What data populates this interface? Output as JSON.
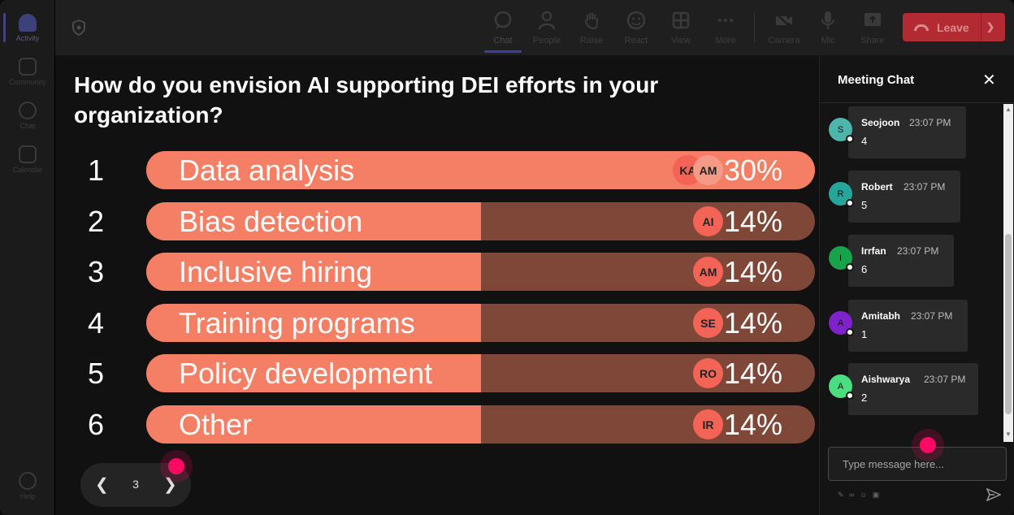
{
  "rail": {
    "items": [
      {
        "label": "Activity",
        "active": true
      },
      {
        "label": "Community",
        "active": false
      },
      {
        "label": "Chat",
        "active": false
      },
      {
        "label": "Calendar",
        "active": false
      }
    ],
    "help": "Help"
  },
  "toolbar": {
    "buttons": [
      {
        "label": "Chat",
        "icon": "chat-icon",
        "active": true
      },
      {
        "label": "People",
        "icon": "people-icon"
      },
      {
        "label": "Raise",
        "icon": "hand-icon"
      },
      {
        "label": "React",
        "icon": "smile-icon"
      },
      {
        "label": "View",
        "icon": "grid-icon"
      },
      {
        "label": "More",
        "icon": "more-icon"
      },
      {
        "label": "Camera",
        "icon": "camera-off-icon"
      },
      {
        "label": "Mic",
        "icon": "mic-icon"
      },
      {
        "label": "Share",
        "icon": "share-icon"
      }
    ],
    "leave_label": "Leave"
  },
  "poll": {
    "question": "How do you envision AI supporting DEI efforts in your organization?",
    "options": [
      {
        "num": "1",
        "label": "Data analysis",
        "pct": "30%",
        "fraction": 0.3,
        "avatars": [
          "KA",
          "AM"
        ]
      },
      {
        "num": "2",
        "label": "Bias detection",
        "pct": "14%",
        "fraction": 0.14,
        "avatars": [
          "AI"
        ]
      },
      {
        "num": "3",
        "label": "Inclusive hiring",
        "pct": "14%",
        "fraction": 0.14,
        "avatars": [
          "AM"
        ]
      },
      {
        "num": "4",
        "label": "Training programs",
        "pct": "14%",
        "fraction": 0.14,
        "avatars": [
          "SE"
        ]
      },
      {
        "num": "5",
        "label": "Policy development",
        "pct": "14%",
        "fraction": 0.14,
        "avatars": [
          "RO"
        ]
      },
      {
        "num": "6",
        "label": "Other",
        "pct": "14%",
        "fraction": 0.14,
        "avatars": [
          "IR"
        ]
      }
    ],
    "page": "3"
  },
  "chat": {
    "title": "Meeting Chat",
    "messages": [
      {
        "initial": "S",
        "name": "Seojoon",
        "time": "23:07 PM",
        "body": "4",
        "color": "#4db6ac"
      },
      {
        "initial": "R",
        "name": "Robert",
        "time": "23:07 PM",
        "body": "5",
        "color": "#26a69a"
      },
      {
        "initial": "I",
        "name": "Irrfan",
        "time": "23:07 PM",
        "body": "6",
        "color": "#16a34a"
      },
      {
        "initial": "A",
        "name": "Amitabh",
        "time": "23:07 PM",
        "body": "1",
        "color": "#7e22ce"
      },
      {
        "initial": "A",
        "name": "Aishwarya",
        "time": "23:07 PM",
        "body": "2",
        "color": "#4ade80"
      }
    ],
    "input_placeholder": "Type message here..."
  },
  "colors": {
    "bar_fill": "#f47f64",
    "bar_track": "#7f4738",
    "leave": "#b32a32",
    "cursor": "#ff0a62"
  }
}
